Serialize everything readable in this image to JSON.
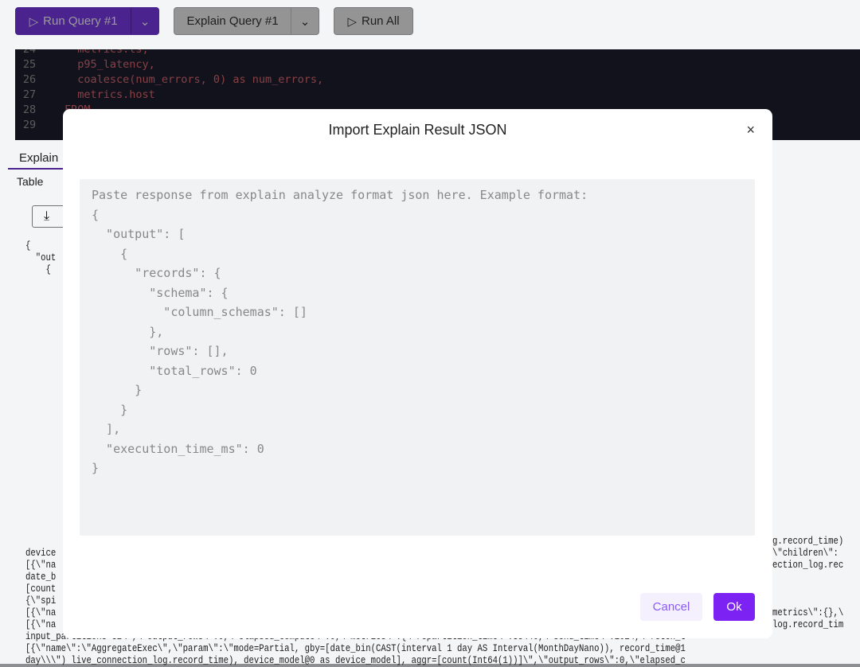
{
  "toolbar": {
    "run_label": "Run Query #1",
    "explain_label": "Explain Query #1",
    "run_all_label": "Run All"
  },
  "editor": {
    "lines": [
      {
        "n": "24",
        "code": "  metrics.ts,"
      },
      {
        "n": "25",
        "code": "  p95_latency,"
      },
      {
        "n": "26",
        "code": "  coalesce(num_errors, 0) as num_errors,"
      },
      {
        "n": "27",
        "code": "  metrics.host"
      },
      {
        "n": "28",
        "code": "FROM"
      },
      {
        "n": "29",
        "code": ""
      }
    ]
  },
  "results": {
    "tab": "Explain",
    "subtab": "Table",
    "json_left": [
      "{",
      "  \"out",
      "    {"
    ],
    "log_left": [
      "device",
      "[{\\\"na",
      "date_b",
      "[count",
      "{\\\"spi",
      "[{\\\"na",
      "[{\\\"na"
    ],
    "log_right": [
      "g.record_time)",
      "\\\"children\\\":",
      "ection_log.rec",
      "",
      "",
      "metrics\\\":{},\\",
      "log.record_tim"
    ],
    "log_full": [
      "input_partitions=32\\\",\\\"output_rows\\\":0,\\\"elapsed_compute\\\":0,\\\"metrics\\\":{\\\"repartition_time\\\":35440,\\\"send_time\\\":1024,\\\"fetch_t",
      "[{\\\"name\\\":\\\"AggregateExec\\\",\\\"param\\\":\\\"mode=Partial, gby=[date_bin(CAST(interval 1 day AS Interval(MonthDayNano)), record_time@1",
      "day\\\\\\\") live_connection_log.record_time), device_model@0 as device_model], aggr=[count(Int64(1))]\\\",\\\"output_rows\\\":0,\\\"elapsed_c"
    ]
  },
  "modal": {
    "title": "Import Explain Result JSON",
    "close": "×",
    "placeholder": "Paste response from explain analyze format json here. Example format:\n{\n  \"output\": [\n    {\n      \"records\": {\n        \"schema\": {\n          \"column_schemas\": []\n        },\n        \"rows\": [],\n        \"total_rows\": 0\n      }\n    }\n  ],\n  \"execution_time_ms\": 0\n}",
    "cancel_label": "Cancel",
    "ok_label": "Ok"
  }
}
